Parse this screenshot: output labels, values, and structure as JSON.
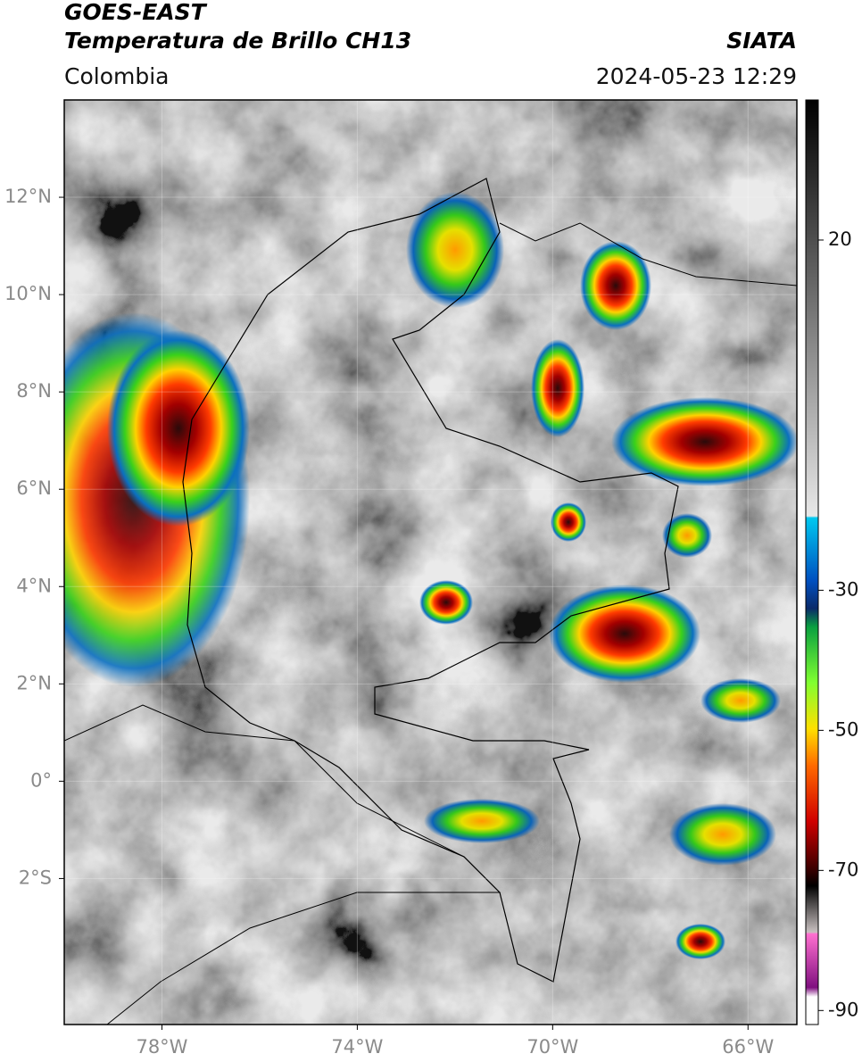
{
  "header": {
    "title": "GOES-EAST",
    "subtitle": "Temperatura de Brillo CH13",
    "source": "SIATA",
    "region": "Colombia",
    "datetime": "2024-05-23 12:29"
  },
  "map": {
    "xlim": [
      -80,
      -65
    ],
    "ylim": [
      -5,
      14
    ],
    "xticks": [
      {
        "value": -78,
        "label": "78°W"
      },
      {
        "value": -74,
        "label": "74°W"
      },
      {
        "value": -70,
        "label": "70°W"
      },
      {
        "value": -66,
        "label": "66°W"
      }
    ],
    "yticks": [
      {
        "value": 12,
        "label": "12°N"
      },
      {
        "value": 10,
        "label": "10°N"
      },
      {
        "value": 8,
        "label": "8°N"
      },
      {
        "value": 6,
        "label": "6°N"
      },
      {
        "value": 4,
        "label": "4°N"
      },
      {
        "value": 2,
        "label": "2°N"
      },
      {
        "value": 0,
        "label": "0°"
      },
      {
        "value": -2,
        "label": "2°S"
      }
    ]
  },
  "colorbar": {
    "lim": [
      -92,
      40
    ],
    "ticks": [
      20,
      -30,
      -50,
      -70,
      -90
    ]
  }
}
